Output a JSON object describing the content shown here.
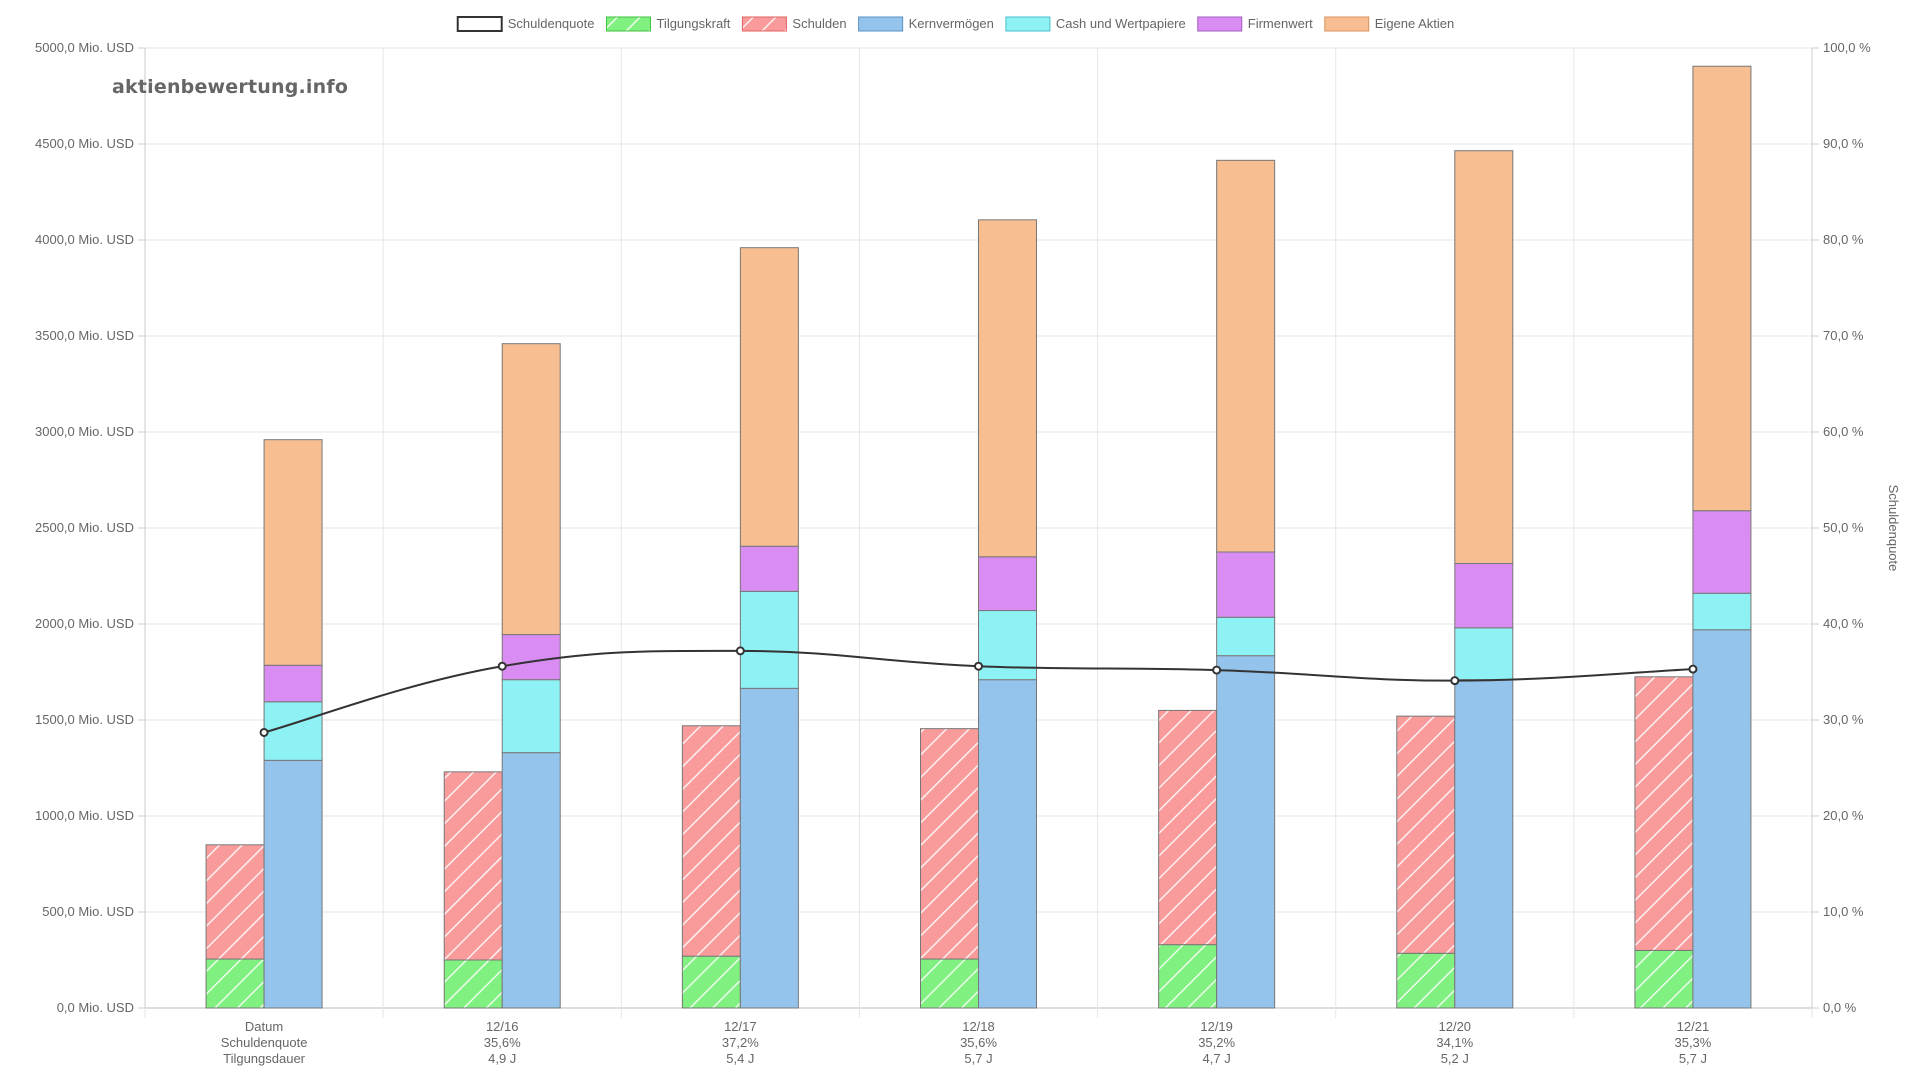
{
  "watermark": "aktienbewertung.info",
  "legend": [
    {
      "label": "Schuldenquote",
      "fill": "#ffffff",
      "stroke": "#333333",
      "hatch": false
    },
    {
      "label": "Tilgungskraft",
      "fill": "#80f080",
      "stroke": "#3fbf3f",
      "hatch": true
    },
    {
      "label": "Schulden",
      "fill": "#f99b9b",
      "stroke": "#e06060",
      "hatch": true
    },
    {
      "label": "Kernvermögen",
      "fill": "#94c4ec",
      "stroke": "#5a90c0",
      "hatch": false
    },
    {
      "label": "Cash und Wertpapiere",
      "fill": "#8ef2f4",
      "stroke": "#45c0c8",
      "hatch": false
    },
    {
      "label": "Firmenwert",
      "fill": "#d98cf1",
      "stroke": "#a35cc0",
      "hatch": false
    },
    {
      "label": "Eigene Aktien",
      "fill": "#f7be92",
      "stroke": "#d99060",
      "hatch": false
    }
  ],
  "chart_data": {
    "type": "bar",
    "categories": [
      [
        "Datum",
        "Schuldenquote",
        "Tilgungsdauer"
      ],
      [
        "12/16",
        "35,6%",
        "4,9 J"
      ],
      [
        "12/17",
        "37,2%",
        "5,4 J"
      ],
      [
        "12/18",
        "35,6%",
        "5,7 J"
      ],
      [
        "12/19",
        "35,2%",
        "4,7 J"
      ],
      [
        "12/20",
        "34,1%",
        "5,2 J"
      ],
      [
        "12/21",
        "35,3%",
        "5,7 J"
      ]
    ],
    "left_stack": {
      "Tilgungskraft": [
        255,
        250,
        270,
        255,
        330,
        285,
        300
      ],
      "Schulden": [
        595,
        980,
        1200,
        1200,
        1220,
        1235,
        1425
      ]
    },
    "right_stack": {
      "Kernvermögen": [
        1290,
        1330,
        1665,
        1710,
        1835,
        1710,
        1970
      ],
      "Cash und Wertpapiere": [
        305,
        380,
        505,
        360,
        200,
        270,
        190
      ],
      "Firmenwert": [
        190,
        235,
        235,
        280,
        340,
        335,
        430
      ],
      "Eigene Aktien": [
        1175,
        1515,
        1555,
        1755,
        2040,
        2150,
        2315
      ]
    },
    "schuldenquote_line": [
      28.7,
      35.6,
      37.2,
      35.6,
      35.2,
      34.1,
      35.3
    ],
    "y_left": {
      "min": 0,
      "max": 5000,
      "step": 500,
      "ticks": [
        "0,0 Mio. USD",
        "500,0 Mio. USD",
        "1000,0 Mio. USD",
        "1500,0 Mio. USD",
        "2000,0 Mio. USD",
        "2500,0 Mio. USD",
        "3000,0 Mio. USD",
        "3500,0 Mio. USD",
        "4000,0 Mio. USD",
        "4500,0 Mio. USD",
        "5000,0 Mio. USD"
      ]
    },
    "y_right": {
      "min": 0,
      "max": 100,
      "step": 10,
      "label": "Schuldenquote",
      "ticks": [
        "0,0 %",
        "10,0 %",
        "20,0 %",
        "30,0 %",
        "40,0 %",
        "50,0 %",
        "60,0 %",
        "70,0 %",
        "80,0 %",
        "90,0 %",
        "100,0 %"
      ]
    },
    "grid": true,
    "legend_position": "top"
  }
}
